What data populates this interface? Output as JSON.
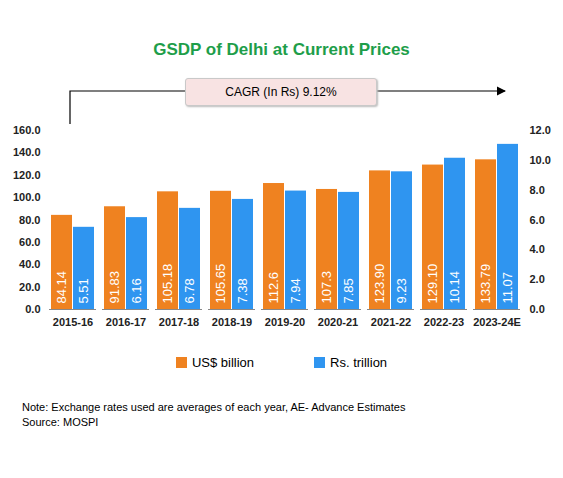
{
  "chart_data": {
    "type": "bar",
    "title": "GSDP of Delhi at Current Prices",
    "annotation": "CAGR (In Rs) 9.12%",
    "categories": [
      "2015-16",
      "2016-17",
      "2017-18",
      "2018-19",
      "2019-20",
      "2020-21",
      "2021-22",
      "2022-23",
      "2023-24E"
    ],
    "series": [
      {
        "name": "US$ billion",
        "color": "#ef8220",
        "values": [
          84.14,
          91.83,
          105.18,
          105.65,
          112.6,
          107.3,
          123.9,
          129.1,
          133.79
        ],
        "value_labels": [
          "84.14",
          "91.83",
          "105.18",
          "105.65",
          "112.6",
          "107.3",
          "123.90",
          "129.10",
          "133.79"
        ]
      },
      {
        "name": "Rs. trillion",
        "color": "#2f95f0",
        "axis": "y2",
        "values": [
          5.51,
          6.16,
          6.78,
          7.38,
          7.94,
          7.85,
          9.23,
          10.14,
          11.07
        ]
      }
    ],
    "ylim": [
      0,
      160
    ],
    "yticks": [
      {
        "value": 0,
        "label": "0.0"
      },
      {
        "value": 20,
        "label": "20.0"
      },
      {
        "value": 40,
        "label": "40.0"
      },
      {
        "value": 60,
        "label": "60.0"
      },
      {
        "value": 80,
        "label": "80.0"
      },
      {
        "value": 100,
        "label": "100.0"
      },
      {
        "value": 120,
        "label": "120.0"
      },
      {
        "value": 140,
        "label": "140.0"
      },
      {
        "value": 160,
        "label": "160.0"
      }
    ],
    "y2lim": [
      0,
      12
    ],
    "y2ticks": [
      {
        "value": 0,
        "label": "0.0"
      },
      {
        "value": 2,
        "label": "2.0"
      },
      {
        "value": 4,
        "label": "4.0"
      },
      {
        "value": 6,
        "label": "6.0"
      },
      {
        "value": 8,
        "label": "8.0"
      },
      {
        "value": 10,
        "label": "10.0"
      },
      {
        "value": 12,
        "label": "12.0"
      }
    ],
    "grid": false,
    "data_labels": true,
    "legend": "bottom",
    "note": "Note: Exchange rates used are averages of each year, AE- Advance Estimates",
    "source": "Source: MOSPI"
  }
}
